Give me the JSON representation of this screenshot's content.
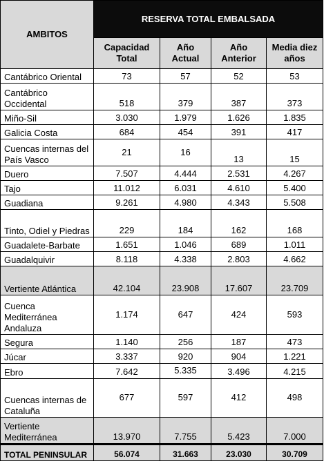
{
  "header": {
    "ambitos": "AMBITOS",
    "group_title": "RESERVA TOTAL EMBALSADA",
    "columns": [
      "Capacidad Total",
      "Año Actual",
      "Año Anterior",
      "Media diez años"
    ]
  },
  "rows": [
    {
      "name": "Cantábrico Oriental",
      "values": [
        "73",
        "57",
        "52",
        "53"
      ]
    },
    {
      "name": "Cantábrico Occidental",
      "values": [
        "518",
        "379",
        "387",
        "373"
      ]
    },
    {
      "name": "Miño-Sil",
      "values": [
        "3.030",
        "1.979",
        "1.626",
        "1.835"
      ]
    },
    {
      "name": "Galicia Costa",
      "values": [
        "684",
        "454",
        "391",
        "417"
      ]
    },
    {
      "name": "Cuencas internas del País Vasco",
      "values": [
        "21",
        "16",
        "13",
        "15"
      ]
    },
    {
      "name": "Duero",
      "values": [
        "7.507",
        "4.444",
        "2.531",
        "4.267"
      ]
    },
    {
      "name": "Tajo",
      "values": [
        "11.012",
        "6.031",
        "4.610",
        "5.400"
      ]
    },
    {
      "name": "Guadiana",
      "values": [
        "9.261",
        "4.980",
        "4.343",
        "5.508"
      ]
    },
    {
      "name": "Tinto, Odiel y Piedras",
      "values": [
        "229",
        "184",
        "162",
        "168"
      ]
    },
    {
      "name": "Guadalete-Barbate",
      "values": [
        "1.651",
        "1.046",
        "689",
        "1.011"
      ]
    },
    {
      "name": "Guadalquivir",
      "values": [
        "8.118",
        "4.338",
        "2.803",
        "4.662"
      ]
    },
    {
      "name": "Vertiente Atlántica",
      "values": [
        "42.104",
        "23.908",
        "17.607",
        "23.709"
      ]
    },
    {
      "name": "Cuenca Mediterránea Andaluza",
      "values": [
        "1.174",
        "647",
        "424",
        "593"
      ]
    },
    {
      "name": "Segura",
      "values": [
        "1.140",
        "256",
        "187",
        "473"
      ]
    },
    {
      "name": "Júcar",
      "values": [
        "3.337",
        "920",
        "904",
        "1.221"
      ]
    },
    {
      "name": "Ebro",
      "values": [
        "7.642",
        "5.335",
        "3.496",
        "4.215"
      ]
    },
    {
      "name": "Cuencas internas de Cataluña",
      "values": [
        "677",
        "597",
        "412",
        "498"
      ]
    },
    {
      "name": "Vertiente Mediterránea",
      "values": [
        "13.970",
        "7.755",
        "5.423",
        "7.000"
      ]
    },
    {
      "name": "TOTAL PENINSULAR",
      "values": [
        "56.074",
        "31.663",
        "23.030",
        "30.709"
      ]
    }
  ]
}
